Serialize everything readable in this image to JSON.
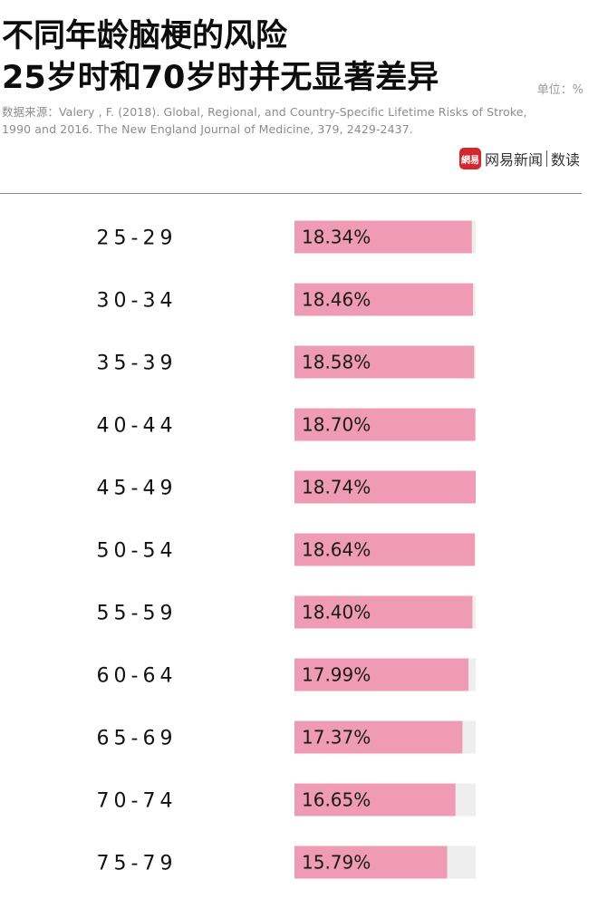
{
  "header": {
    "title_line1": "不同年龄脑梗的风险",
    "title_line2": "25岁时和70岁时并无显著差异",
    "unit": "单位：%",
    "source_line1": "数据来源：Valery , F. (2018). Global, Regional, and Country-Specific Lifetime Risks of Stroke,",
    "source_line2": "1990 and 2016. The New England Journal of Medicine, 379, 2429-2437.",
    "brand_logo": "網易",
    "brand_name": "网易新闻",
    "brand_sub": "数读"
  },
  "colors": {
    "bar": "#ef9bb5",
    "track": "#eeeeee",
    "logo": "#d6262d"
  },
  "chart_data": {
    "type": "bar",
    "orientation": "horizontal",
    "categories": [
      "25-29",
      "30-34",
      "35-39",
      "40-44",
      "45-49",
      "50-54",
      "55-59",
      "60-64",
      "65-69",
      "70-74",
      "75-79"
    ],
    "values": [
      18.34,
      18.46,
      18.58,
      18.7,
      18.74,
      18.64,
      18.4,
      17.99,
      17.37,
      16.65,
      15.79
    ],
    "value_labels": [
      "18.34%",
      "18.46%",
      "18.58%",
      "18.70%",
      "18.74%",
      "18.64%",
      "18.40%",
      "17.99%",
      "17.37%",
      "16.65%",
      "15.79%"
    ],
    "xlim": [
      0,
      18.74
    ],
    "title": "不同年龄脑梗的风险",
    "xlabel": "",
    "ylabel": "",
    "grid": false,
    "legend": "none"
  }
}
